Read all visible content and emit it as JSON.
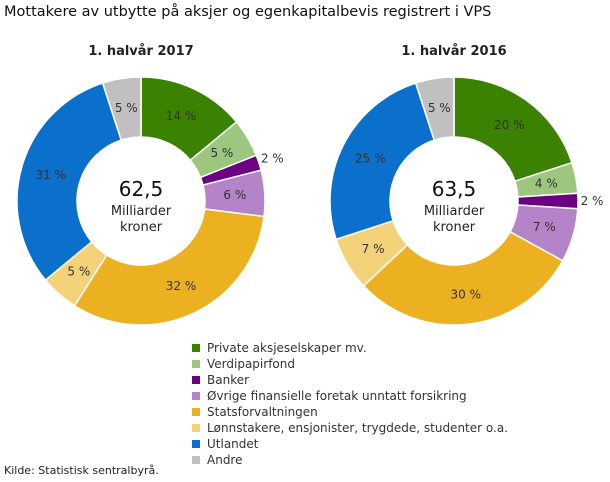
{
  "title": "Mottakere av utbytte på aksjer og egenkapitalbevis registrert i VPS",
  "source": "Kilde: Statistisk sentralbyrå.",
  "chart_data": [
    {
      "type": "pie",
      "variant": "donut",
      "title": "1. halvår 2017",
      "center_value": "62,5",
      "center_unit_line1": "Milliarder",
      "center_unit_line2": "kroner",
      "categories": [
        "Private aksjeselskaper mv.",
        "Verdipapirfond",
        "Banker",
        "Øvrige finansielle foretak unntatt forsikring",
        "Statsforvaltningen",
        "Lønnstakere, ensjonister, trygdede, studenter o.a.",
        "Utlandet",
        "Andre"
      ],
      "values": [
        14,
        5,
        2,
        6,
        32,
        5,
        31,
        5
      ],
      "labels": [
        "14 %",
        "5 %",
        "2 %",
        "6 %",
        "32 %",
        "5 %",
        "31 %",
        "5 %"
      ]
    },
    {
      "type": "pie",
      "variant": "donut",
      "title": "1. halvår 2016",
      "center_value": "63,5",
      "center_unit_line1": "Milliarder",
      "center_unit_line2": "kroner",
      "categories": [
        "Private aksjeselskaper mv.",
        "Verdipapirfond",
        "Banker",
        "Øvrige finansielle foretak unntatt forsikring",
        "Statsforvaltningen",
        "Lønnstakere, ensjonister, trygdede, studenter o.a.",
        "Utlandet",
        "Andre"
      ],
      "values": [
        20,
        4,
        2,
        7,
        30,
        7,
        25,
        5
      ],
      "labels": [
        "20 %",
        "4 %",
        "2 %",
        "7 %",
        "30 %",
        "7 %",
        "25 %",
        "5 %"
      ]
    }
  ],
  "legend": {
    "placement": "bottom-center",
    "items": [
      {
        "label": "Private aksjeselskaper mv.",
        "color": "#3a8200"
      },
      {
        "label": "Verdipapirfond",
        "color": "#9dc67f"
      },
      {
        "label": "Banker",
        "color": "#6b0082"
      },
      {
        "label": "Øvrige finansielle foretak unntatt forsikring",
        "color": "#b583c8"
      },
      {
        "label": "Statsforvaltningen",
        "color": "#ebb121"
      },
      {
        "label": "Lønnstakere, ensjonister, trygdede, studenter o.a.",
        "color": "#f3d27a"
      },
      {
        "label": "Utlandet",
        "color": "#0b6fcc"
      },
      {
        "label": "Andre",
        "color": "#c0c0c0"
      }
    ]
  }
}
